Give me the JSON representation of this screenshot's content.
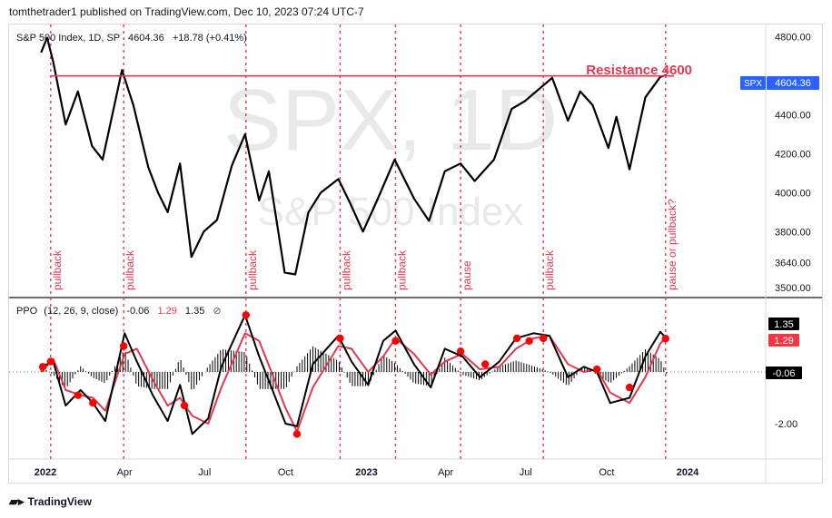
{
  "publisher_line": "tomthetrader1 published on TradingView.com, Dec 10, 2023 07:24 UTC-7",
  "brand": "TradingView",
  "colors": {
    "price": "#000000",
    "resistance": "#e0394f",
    "pullback": "#e0394f",
    "ppo_line": "#000000",
    "ppo_signal": "#e0394f",
    "ppo_hist": "#000000",
    "dot": "#ff0000",
    "tag_blue": "#2962ff",
    "watermark": "#e6e6e6"
  },
  "chart_data": [
    {
      "type": "line",
      "title": "S&P 500 Index, 1D, SP",
      "symbol": "SPX",
      "last": "4604.36",
      "change": "+18.78 (+0.41%)",
      "watermark": "SPX, 1D",
      "watermark_sub": "S&P 500 Index",
      "yticks": [
        "4800.00",
        "4600.00",
        "4400.00",
        "4200.00",
        "4000.00",
        "3800.00",
        "3640.00",
        "3500.00"
      ],
      "xticks": [
        "2022",
        "Apr",
        "Jul",
        "Oct",
        "2023",
        "Apr",
        "Jul",
        "Oct",
        "2024"
      ],
      "price_tag": "4604.36",
      "symbol_tag": "SPX",
      "annotation": "Resistance 4600",
      "resistance_level": 4600,
      "series": [
        {
          "x": [
            "2021-12-27",
            "2022-01-03",
            "2022-01-10",
            "2022-01-24",
            "2022-02-07",
            "2022-02-23",
            "2022-03-07",
            "2022-03-29",
            "2022-04-11",
            "2022-04-28",
            "2022-05-09",
            "2022-05-20",
            "2022-06-03",
            "2022-06-16",
            "2022-06-30",
            "2022-07-15",
            "2022-08-01",
            "2022-08-16",
            "2022-09-01",
            "2022-09-12",
            "2022-09-30",
            "2022-10-12",
            "2022-10-27",
            "2022-11-10",
            "2022-11-30",
            "2022-12-13",
            "2022-12-28",
            "2023-01-13",
            "2023-02-02",
            "2023-02-24",
            "2023-03-13",
            "2023-03-31",
            "2023-04-18",
            "2023-05-04",
            "2023-05-26",
            "2023-06-15",
            "2023-06-30",
            "2023-07-31",
            "2023-08-18",
            "2023-09-01",
            "2023-09-15",
            "2023-10-03",
            "2023-10-12",
            "2023-10-27",
            "2023-11-14",
            "2023-12-01",
            "2023-12-08"
          ],
          "values": [
            4720,
            4796,
            4670,
            4350,
            4520,
            4240,
            4170,
            4630,
            4450,
            4130,
            4000,
            3900,
            4150,
            3670,
            3800,
            3860,
            4140,
            4300,
            3960,
            4110,
            3590,
            3580,
            3900,
            4000,
            4070,
            3950,
            3800,
            3960,
            4170,
            3970,
            3855,
            4110,
            4150,
            4060,
            4170,
            4430,
            4470,
            4590,
            4370,
            4520,
            4450,
            4230,
            4390,
            4120,
            4490,
            4595,
            4604
          ]
        }
      ],
      "vlines": [
        {
          "date": "2022-01-07",
          "label": "pullback"
        },
        {
          "date": "2022-03-31",
          "label": "pullback"
        },
        {
          "date": "2022-08-17",
          "label": "pullback"
        },
        {
          "date": "2022-12-02",
          "label": "pullback"
        },
        {
          "date": "2023-02-03",
          "label": "pullback"
        },
        {
          "date": "2023-04-18",
          "label": "pause"
        },
        {
          "date": "2023-07-21",
          "label": "pullback"
        },
        {
          "date": "2023-12-07",
          "label": "pause or pullback?"
        }
      ]
    },
    {
      "type": "line",
      "title": "PPO",
      "params": "(12, 26, 9, close)",
      "values_text": [
        "-0.06",
        "1.29",
        "1.35"
      ],
      "yticks": [
        "1.35",
        "1.29",
        "-0.06",
        "-2.00"
      ],
      "series": [
        {
          "name": "PPO",
          "x": [
            "2021-12-27",
            "2022-01-10",
            "2022-01-24",
            "2022-02-10",
            "2022-02-24",
            "2022-03-10",
            "2022-04-01",
            "2022-04-15",
            "2022-05-03",
            "2022-05-20",
            "2022-06-03",
            "2022-06-17",
            "2022-07-05",
            "2022-07-20",
            "2022-08-16",
            "2022-09-01",
            "2022-09-15",
            "2022-10-01",
            "2022-10-14",
            "2022-11-01",
            "2022-11-30",
            "2022-12-15",
            "2023-01-03",
            "2023-01-20",
            "2023-02-03",
            "2023-02-24",
            "2023-03-15",
            "2023-03-31",
            "2023-04-20",
            "2023-05-10",
            "2023-06-01",
            "2023-06-20",
            "2023-07-10",
            "2023-07-28",
            "2023-08-18",
            "2023-09-05",
            "2023-09-20",
            "2023-10-05",
            "2023-10-27",
            "2023-11-14",
            "2023-12-01",
            "2023-12-08"
          ],
          "values": [
            0.2,
            0.4,
            -1.3,
            -0.7,
            -1.2,
            -1.9,
            1.5,
            0.4,
            -0.9,
            -1.9,
            -0.5,
            -2.4,
            -1.8,
            0.2,
            2.2,
            0.6,
            -0.6,
            -2.0,
            -2.1,
            0.3,
            1.4,
            0.4,
            -0.5,
            1.2,
            1.6,
            0.3,
            -0.6,
            0.9,
            0.6,
            -0.2,
            0.4,
            1.3,
            1.5,
            1.4,
            -0.2,
            0.2,
            0.0,
            -1.2,
            -1.0,
            0.6,
            1.55,
            1.29
          ]
        },
        {
          "name": "Signal",
          "x": [
            "2021-12-27",
            "2022-01-10",
            "2022-01-24",
            "2022-02-10",
            "2022-02-24",
            "2022-03-10",
            "2022-04-01",
            "2022-04-15",
            "2022-05-03",
            "2022-05-20",
            "2022-06-03",
            "2022-06-17",
            "2022-07-05",
            "2022-07-20",
            "2022-08-16",
            "2022-09-01",
            "2022-09-15",
            "2022-10-01",
            "2022-10-14",
            "2022-11-01",
            "2022-11-30",
            "2022-12-15",
            "2023-01-03",
            "2023-01-20",
            "2023-02-03",
            "2023-02-24",
            "2023-03-15",
            "2023-03-31",
            "2023-04-20",
            "2023-05-10",
            "2023-06-01",
            "2023-06-20",
            "2023-07-10",
            "2023-07-28",
            "2023-08-18",
            "2023-09-05",
            "2023-09-20",
            "2023-10-05",
            "2023-10-27",
            "2023-11-14",
            "2023-12-01",
            "2023-12-08"
          ],
          "values": [
            0.0,
            0.5,
            -0.7,
            -0.9,
            -1.0,
            -1.5,
            0.7,
            0.9,
            -0.3,
            -1.3,
            -1.0,
            -1.7,
            -2.0,
            -0.6,
            1.5,
            1.2,
            0.0,
            -1.4,
            -2.3,
            -0.6,
            1.0,
            0.9,
            0.0,
            0.6,
            1.3,
            0.7,
            -0.1,
            0.4,
            0.7,
            0.1,
            0.2,
            0.9,
            1.3,
            1.4,
            0.3,
            0.0,
            0.1,
            -0.8,
            -1.2,
            -0.2,
            1.1,
            1.35
          ]
        }
      ],
      "dots": [
        {
          "date": "2021-12-29",
          "value": 0.2
        },
        {
          "date": "2022-01-07",
          "value": 0.4
        },
        {
          "date": "2022-02-07",
          "value": -0.9
        },
        {
          "date": "2022-02-24",
          "value": -1.2
        },
        {
          "date": "2022-03-31",
          "value": 1.0
        },
        {
          "date": "2022-06-08",
          "value": -1.3
        },
        {
          "date": "2022-08-17",
          "value": 2.2
        },
        {
          "date": "2022-10-14",
          "value": -2.4
        },
        {
          "date": "2022-12-02",
          "value": 1.3
        },
        {
          "date": "2023-02-03",
          "value": 1.2
        },
        {
          "date": "2023-04-18",
          "value": 0.8
        },
        {
          "date": "2023-05-16",
          "value": 0.3
        },
        {
          "date": "2023-06-21",
          "value": 1.3
        },
        {
          "date": "2023-07-05",
          "value": 1.2
        },
        {
          "date": "2023-07-21",
          "value": 1.3
        },
        {
          "date": "2023-09-20",
          "value": 0.1
        },
        {
          "date": "2023-10-27",
          "value": -0.6
        },
        {
          "date": "2023-12-07",
          "value": 1.29
        }
      ]
    }
  ]
}
